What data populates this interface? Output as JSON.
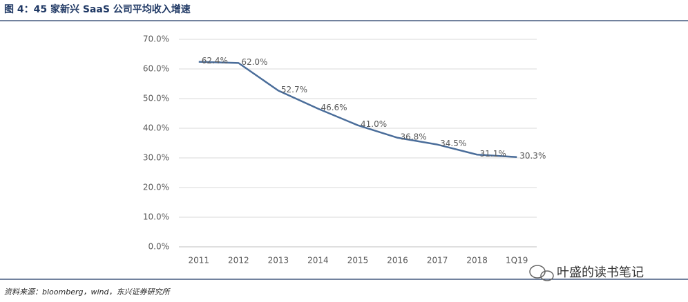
{
  "chart_data": {
    "type": "line",
    "title": "图 4：45 家新兴 SaaS 公司平均收入增速",
    "source": "资料来源：bloomberg，wind，东兴证券研究所",
    "watermark": "叶盛的读书笔记",
    "categories": [
      "2011",
      "2012",
      "2013",
      "2014",
      "2015",
      "2016",
      "2017",
      "2018",
      "1Q19"
    ],
    "values": [
      62.4,
      62.0,
      52.7,
      46.6,
      41.0,
      36.8,
      34.5,
      31.1,
      30.3
    ],
    "value_labels": [
      "62.4%",
      "62.0%",
      "52.7%",
      "46.6%",
      "41.0%",
      "36.8%",
      "34.5%",
      "31.1%",
      "30.3%"
    ],
    "color": "#4a6d9a",
    "ylim": [
      0,
      70
    ],
    "yticks": [
      {
        "value": 0,
        "label": "0.0%"
      },
      {
        "value": 10,
        "label": "10.0%"
      },
      {
        "value": 20,
        "label": "20.0%"
      },
      {
        "value": 30,
        "label": "30.0%"
      },
      {
        "value": 40,
        "label": "40.0%"
      },
      {
        "value": 50,
        "label": "50.0%"
      },
      {
        "value": 60,
        "label": "60.0%"
      },
      {
        "value": 70,
        "label": "70.0%"
      }
    ],
    "grid": true
  }
}
